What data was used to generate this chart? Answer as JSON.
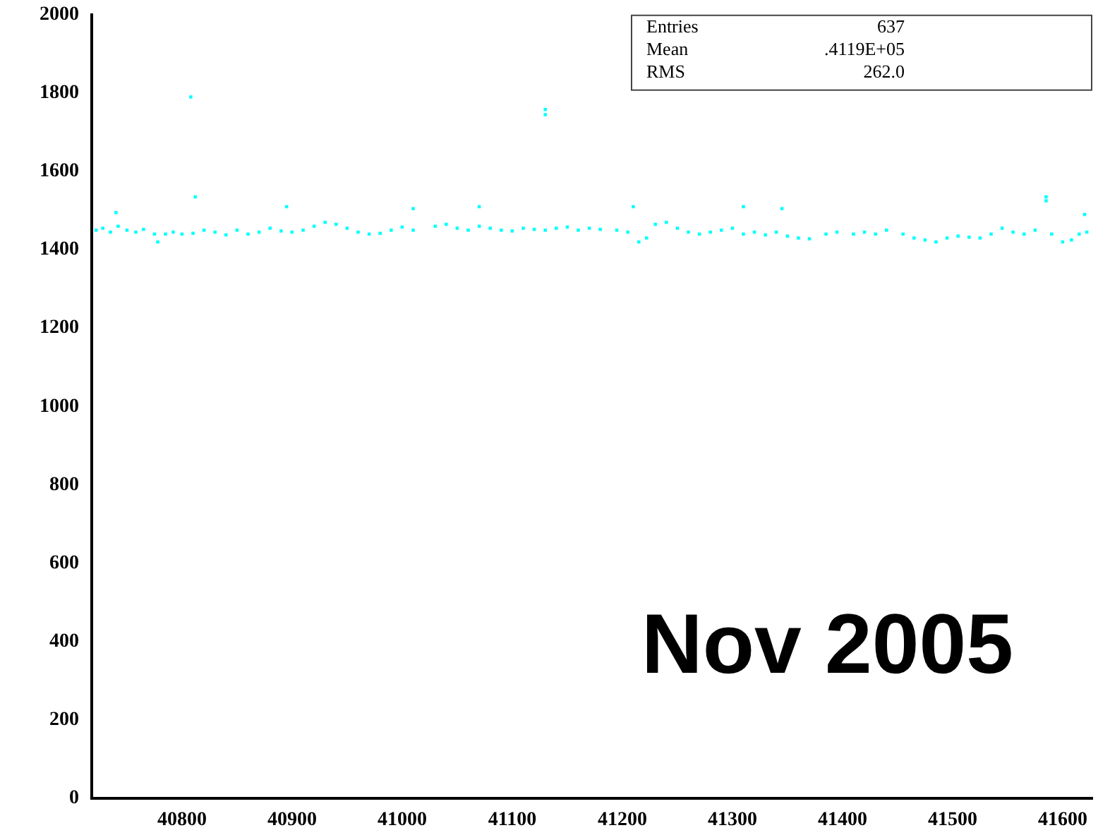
{
  "chart_data": {
    "type": "scatter",
    "xlim": [
      40718,
      41627
    ],
    "ylim": [
      0,
      2000
    ],
    "xticks": [
      40800,
      40900,
      41000,
      41100,
      41200,
      41300,
      41400,
      41500,
      41600
    ],
    "yticks": [
      0,
      200,
      400,
      600,
      800,
      1000,
      1200,
      1400,
      1600,
      1800,
      2000
    ],
    "grid": false,
    "legend": false,
    "marker": "square",
    "annotations": [
      "Entries",
      "637",
      "Mean",
      ".4119E+05",
      "RMS",
      "262.0",
      "Nov 2005"
    ],
    "series": [
      {
        "color": "#00ffff",
        "x": [
          40722,
          40728,
          40735,
          40742,
          40750,
          40758,
          40765,
          40775,
          40778,
          40785,
          40792,
          40800,
          40810,
          40820,
          40830,
          40840,
          40850,
          40860,
          40870,
          40880,
          40890,
          40900,
          40910,
          40920,
          40930,
          40940,
          40950,
          40960,
          40970,
          40980,
          40990,
          41000,
          41010,
          41030,
          41040,
          41050,
          41060,
          41070,
          41080,
          41090,
          41100,
          41110,
          41120,
          41130,
          41140,
          41150,
          41160,
          41170,
          41180,
          41195,
          41205,
          41215,
          41222,
          41230,
          41240,
          41250,
          41260,
          41270,
          41280,
          41290,
          41300,
          41310,
          41320,
          41330,
          41340,
          41350,
          41360,
          41370,
          41385,
          41395,
          41410,
          41420,
          41430,
          41440,
          41455,
          41465,
          41475,
          41485,
          41495,
          41505,
          41515,
          41525,
          41535,
          41545,
          41555,
          41565,
          41575,
          41590,
          41600,
          41608,
          41615,
          41622,
          40808,
          40812,
          40895,
          41010,
          41070,
          41130,
          41130,
          41210,
          41310,
          41345,
          41585,
          41585,
          41620,
          40740
        ],
        "values": [
          1450,
          1455,
          1445,
          1460,
          1450,
          1445,
          1452,
          1440,
          1420,
          1440,
          1445,
          1440,
          1442,
          1450,
          1445,
          1438,
          1450,
          1440,
          1445,
          1455,
          1448,
          1445,
          1450,
          1460,
          1470,
          1465,
          1455,
          1445,
          1440,
          1442,
          1450,
          1458,
          1450,
          1460,
          1465,
          1455,
          1450,
          1460,
          1455,
          1450,
          1448,
          1455,
          1452,
          1450,
          1455,
          1458,
          1450,
          1455,
          1452,
          1450,
          1445,
          1420,
          1430,
          1465,
          1470,
          1455,
          1445,
          1440,
          1445,
          1450,
          1455,
          1440,
          1445,
          1438,
          1445,
          1435,
          1430,
          1428,
          1440,
          1445,
          1440,
          1445,
          1440,
          1450,
          1440,
          1430,
          1425,
          1420,
          1430,
          1435,
          1432,
          1430,
          1440,
          1455,
          1445,
          1440,
          1450,
          1440,
          1420,
          1425,
          1440,
          1445,
          1790,
          1535,
          1510,
          1505,
          1510,
          1745,
          1758,
          1510,
          1510,
          1505,
          1535,
          1525,
          1490,
          1495
        ]
      }
    ]
  }
}
